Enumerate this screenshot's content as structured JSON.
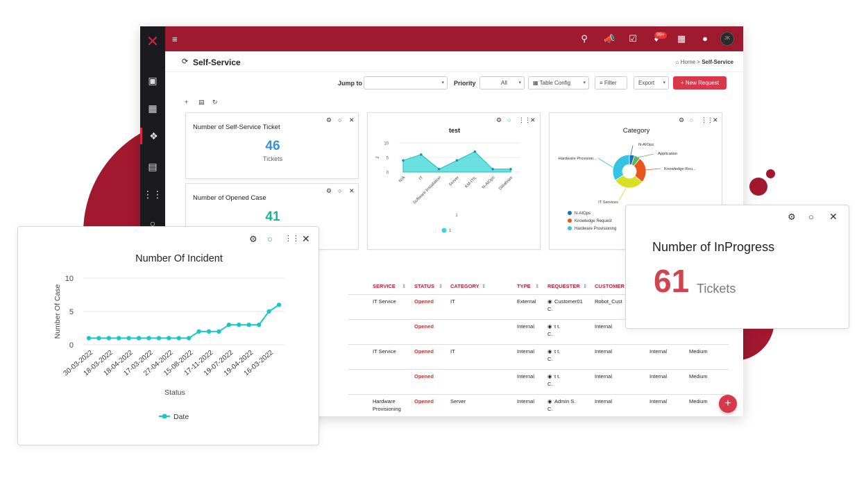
{
  "app": {
    "page_title": "Self-Service",
    "breadcrumb": {
      "home": "Home >",
      "current": "Self-Service"
    },
    "notif_badge": "99+",
    "avatar_initials": "JK"
  },
  "toolbar": {
    "jump_to_label": "Jump to",
    "jump_to_value": "",
    "priority_label": "Priority",
    "priority_value": "All",
    "table_config": "Table Config",
    "filter": "Filter",
    "export": "Export",
    "new_request": "+ New Request"
  },
  "widgets": {
    "self_service": {
      "title": "Number of Self-Service Ticket",
      "value": "46",
      "unit": "Tickets",
      "color": "#3b8fd9"
    },
    "opened_case": {
      "title": "Number of Opened Case",
      "value": "41",
      "color": "#1ab394"
    },
    "test_chart": {
      "title": "test",
      "legend": "1",
      "x_title": "1",
      "y_title": "2"
    },
    "category": {
      "title": "Category",
      "labels": [
        "N-AIOps",
        "Application",
        "Knowledge Reu...",
        "IT Services",
        "Hardware Provision..."
      ],
      "legend": [
        "N-AIOps",
        "Knowledge Request",
        "Hardware Provisioning"
      ]
    },
    "in_progress": {
      "title": "Number of InProgress",
      "value": "61",
      "unit": "Tickets",
      "color": "#d0434f"
    },
    "incident": {
      "title": "Number Of Incident",
      "legend": "Date"
    }
  },
  "chart_data": [
    {
      "type": "line",
      "title": "Number Of Incident",
      "xlabel": "Status",
      "ylabel": "Number Of Case",
      "ylim": [
        0,
        10
      ],
      "yticks": [
        0,
        5,
        10
      ],
      "x_tick_labels": [
        "30-03-2022",
        "18-03-2022",
        "18-04-2022",
        "17-03-2022",
        "27-04-2022",
        "15-08-2022",
        "17-11-2022",
        "19-07-2022",
        "19-04-2022",
        "16-03-2022"
      ],
      "series": [
        {
          "name": "Date",
          "values": [
            1,
            1,
            1,
            1,
            1,
            1,
            1,
            1,
            1,
            1,
            1,
            2,
            2,
            2,
            3,
            3,
            3,
            3,
            5,
            6
          ]
        }
      ],
      "legend_position": "bottom",
      "color": "#1bc6c6"
    },
    {
      "type": "area",
      "title": "test",
      "xlabel": "1",
      "ylabel": "2",
      "ylim": [
        0,
        10
      ],
      "yticks": [
        0,
        5,
        10
      ],
      "categories": [
        "N/A",
        "IT",
        "Software Installation",
        "Server",
        "KM-ITIL",
        "N-AIOps",
        "Database"
      ],
      "series": [
        {
          "name": "1",
          "values": [
            4,
            6,
            1,
            4,
            7,
            1,
            1
          ]
        }
      ],
      "color": "#3ad6d6"
    },
    {
      "type": "pie",
      "title": "Category",
      "categories": [
        "N-AIOps",
        "Application",
        "Knowledge Request",
        "IT Services",
        "Hardware Provisioning"
      ],
      "values": [
        5,
        6,
        25,
        30,
        34
      ],
      "colors": [
        "#1f6fb5",
        "#5cb85c",
        "#e8561c",
        "#d9e021",
        "#35c3e3"
      ],
      "legend_position": "bottom-left"
    }
  ],
  "table": {
    "headers": [
      "SERVICE",
      "STATUS",
      "CATEGORY",
      "TYPE",
      "REQUESTER",
      "CUSTOMER"
    ],
    "rows": [
      {
        "service": "IT Service",
        "status": "Opened",
        "category": "IT",
        "type": "External",
        "requester": "Customer01",
        "requester2": "C.",
        "customer": "Robot_Cust",
        "c7": "",
        "c8": ""
      },
      {
        "service": "",
        "status": "Opened",
        "category": "",
        "type": "Internal",
        "requester": "t t.",
        "requester2": "C.",
        "customer": "Internal",
        "c7": "Internal",
        "c8": "Medium"
      },
      {
        "service": "IT Service",
        "status": "Opened",
        "category": "IT",
        "type": "Internal",
        "requester": "t t.",
        "requester2": "C.",
        "customer": "Internal",
        "c7": "Internal",
        "c8": "Medium"
      },
      {
        "service": "",
        "status": "Opened",
        "category": "",
        "type": "Internal",
        "requester": "t t.",
        "requester2": "C.",
        "customer": "Internal",
        "c7": "Internal",
        "c8": "Medium"
      },
      {
        "service": "Hardware",
        "service2": "Provisioning",
        "status": "Opened",
        "category": "Server",
        "type": "Internal",
        "requester": "Admin S.",
        "requester2": "C.",
        "customer": "Internal",
        "c7": "Internal",
        "c8": "Medium"
      }
    ]
  }
}
